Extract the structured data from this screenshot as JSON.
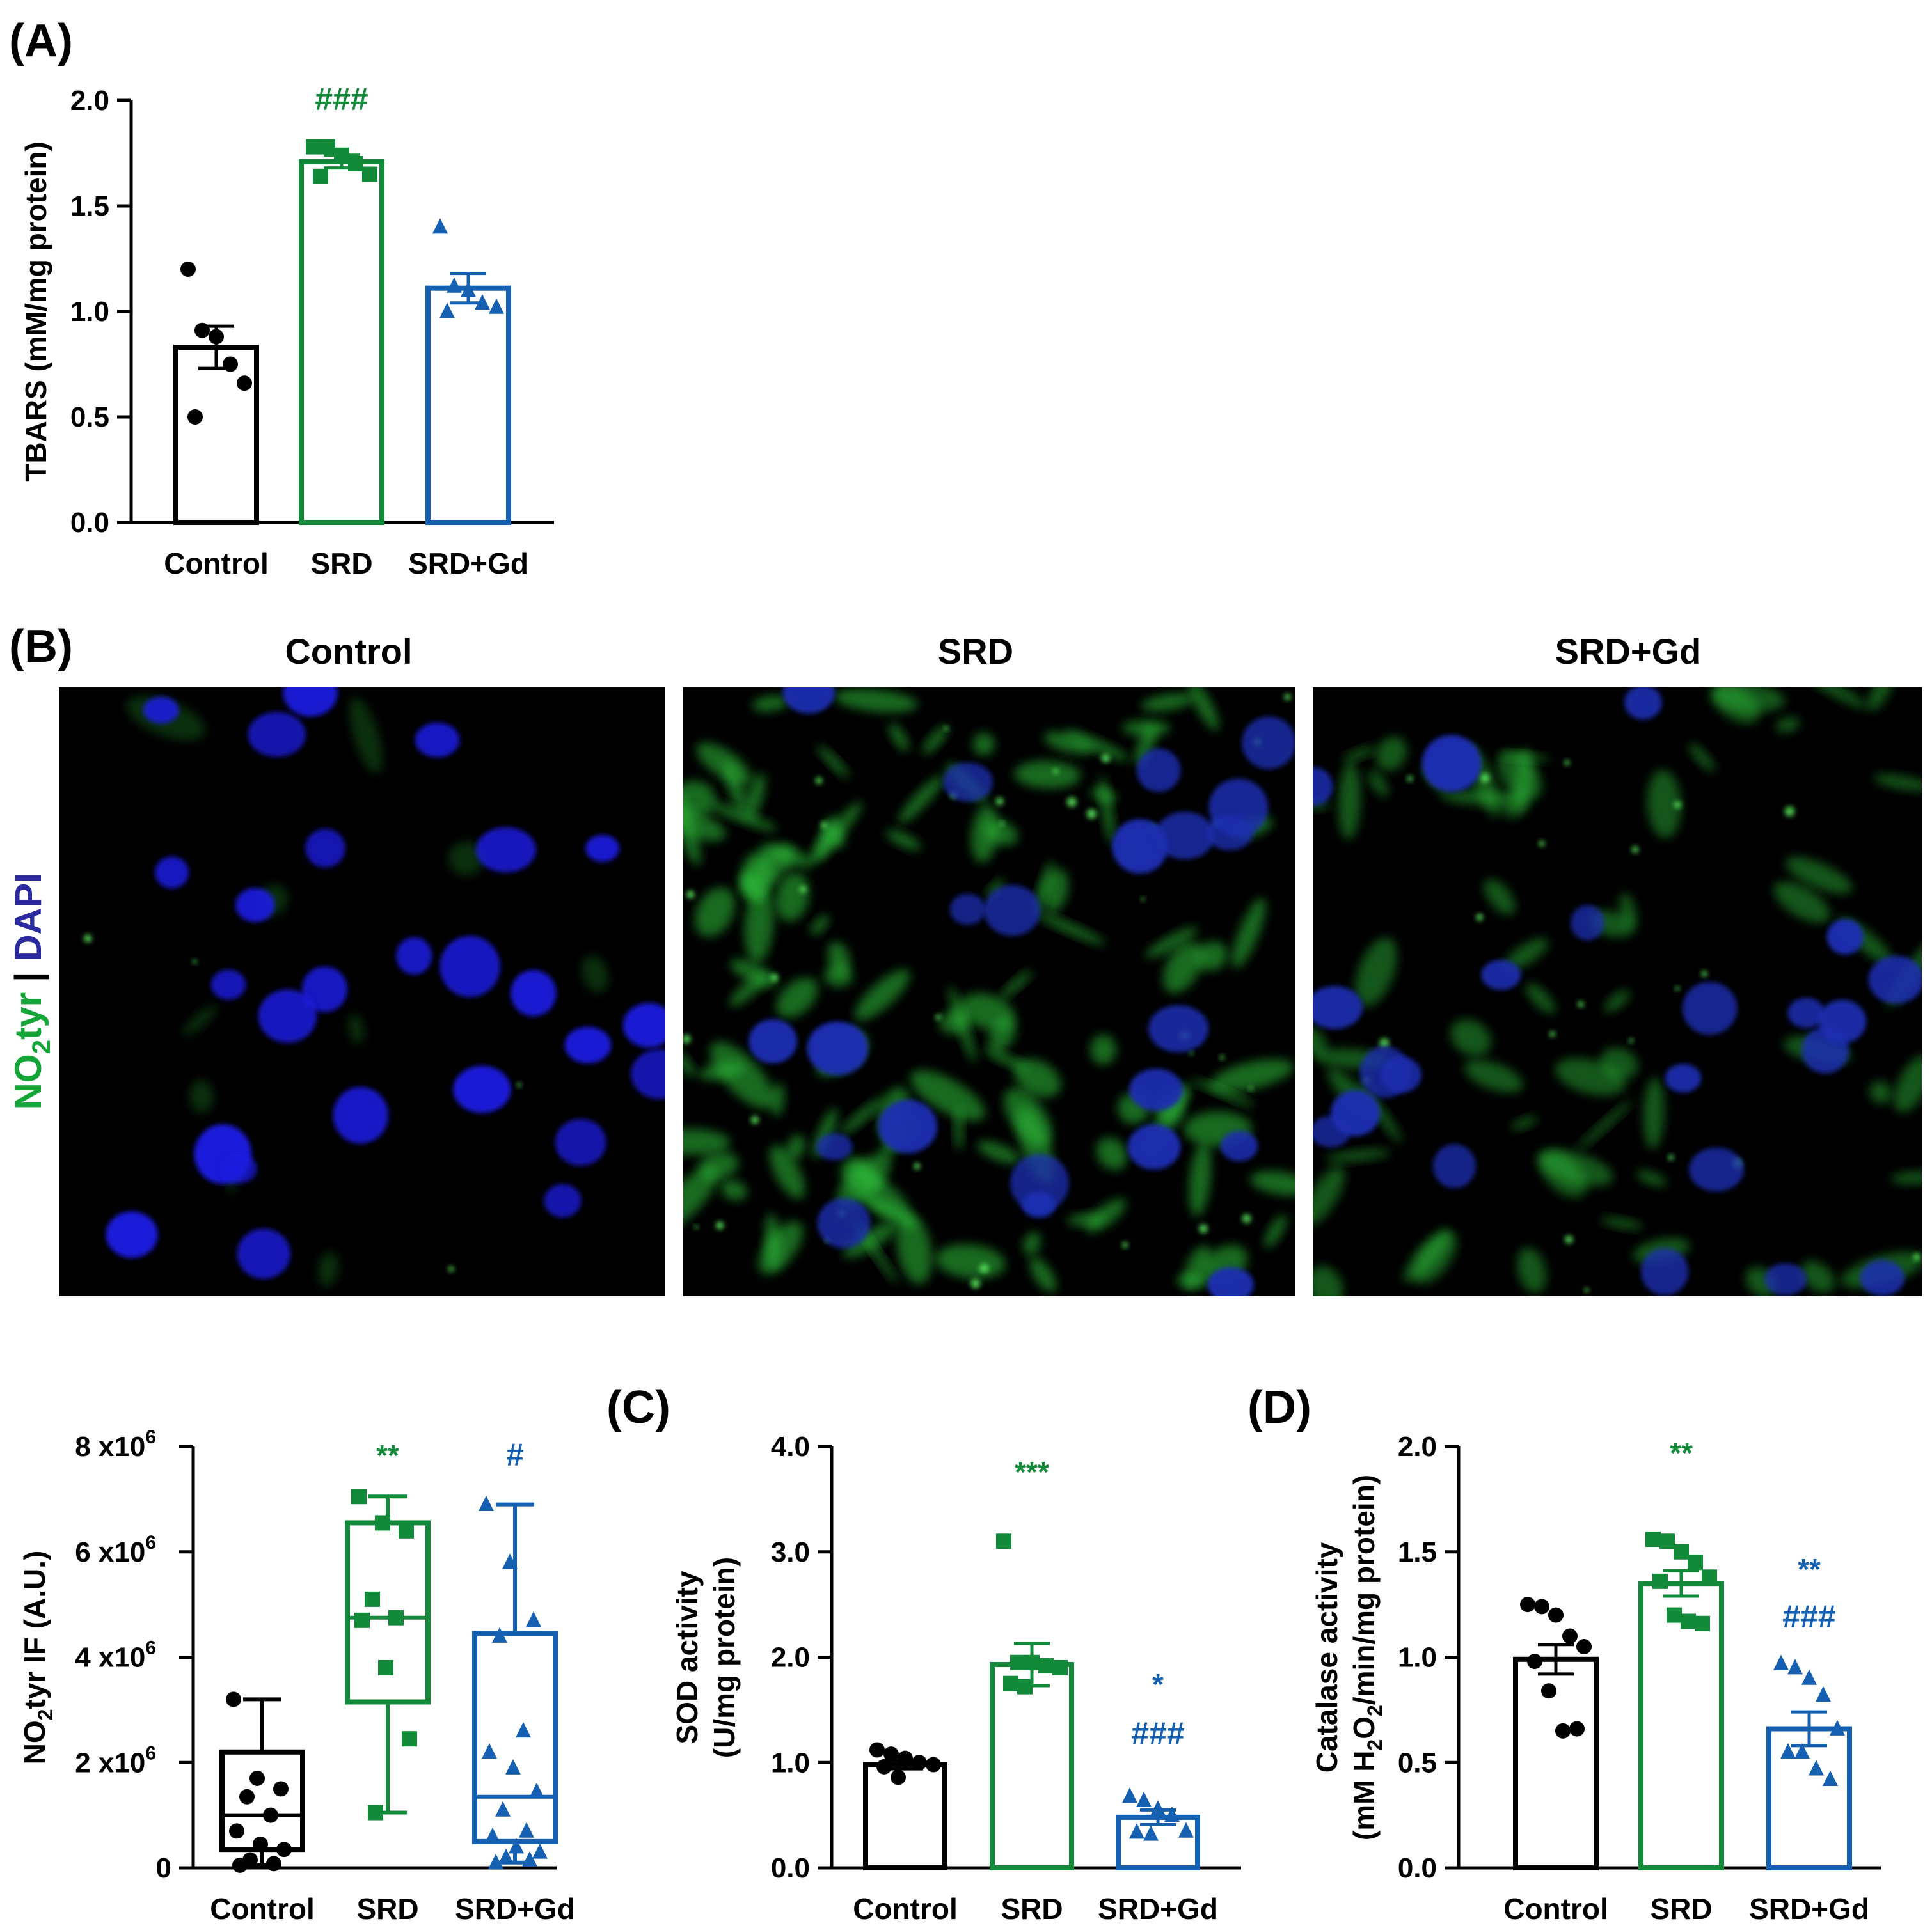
{
  "colors": {
    "control": "#000000",
    "srd": "#138a3a",
    "srdgd": "#1560b0",
    "ylabel_green": "#13a538",
    "ylabel_blue": "#2b2a9e"
  },
  "panel_labels": {
    "A": "(A)",
    "B": "(B)",
    "C": "(C)",
    "D": "(D)"
  },
  "groups": [
    "Control",
    "SRD",
    "SRD+Gd"
  ],
  "micrograph": {
    "titles": [
      "Control",
      "SRD",
      "SRD+Gd"
    ],
    "ylabel_green": "NO2tyr",
    "ylabel_sep": " | ",
    "ylabel_blue": "DAPI"
  },
  "chart_data": [
    {
      "id": "A",
      "type": "bar",
      "ylabel": "TBARS (mM/mg protein)",
      "ylim": [
        0,
        2.0
      ],
      "yticks": [
        0.0,
        0.5,
        1.0,
        1.5,
        2.0
      ],
      "ytick_labels": [
        "0.0",
        "0.5",
        "1.0",
        "1.5",
        "2.0"
      ],
      "categories": [
        "Control",
        "SRD",
        "SRD+Gd"
      ],
      "values": [
        0.83,
        1.71,
        1.11
      ],
      "sem": [
        0.1,
        0.03,
        0.07
      ],
      "points": [
        [
          1.2,
          0.91,
          0.88,
          0.75,
          0.66,
          0.5
        ],
        [
          1.78,
          1.78,
          1.74,
          1.7,
          1.65,
          1.64
        ],
        [
          1.4,
          1.12,
          1.1,
          1.04,
          1.02,
          1.0
        ]
      ],
      "annotations": [
        [
          "***"
        ],
        [
          "###",
          "*"
        ],
        []
      ],
      "annotation_order": [
        1,
        2
      ]
    },
    {
      "id": "B2",
      "type": "box",
      "ylabel_main": "NO2tyr IF",
      "ylabel_unit": "(A.U.)",
      "ylim": [
        0,
        8000000
      ],
      "yticks": [
        0,
        2000000,
        4000000,
        6000000,
        8000000
      ],
      "ytick_labels": [
        "0",
        "2 x10",
        "4 x10",
        "6 x10",
        "8 x10"
      ],
      "ytick_sup": [
        "",
        "6",
        "6",
        "6",
        "6"
      ],
      "categories": [
        "Control",
        "SRD",
        "SRD+Gd"
      ],
      "box": [
        {
          "min": 50000,
          "q1": 350000,
          "median": 1000000,
          "q3": 2200000,
          "max": 3200000
        },
        {
          "min": 1050000,
          "q1": 3150000,
          "median": 4750000,
          "q3": 6550000,
          "max": 7050000
        },
        {
          "min": 100000,
          "q1": 500000,
          "median": 1350000,
          "q3": 4450000,
          "max": 6900000
        }
      ],
      "points": [
        [
          3200000,
          1700000,
          1500000,
          1350000,
          1000000,
          700000,
          450000,
          350000,
          150000,
          80000,
          50000
        ],
        [
          7050000,
          6550000,
          6400000,
          5100000,
          4750000,
          4700000,
          3800000,
          2450000,
          1050000
        ],
        [
          6900000,
          5800000,
          4700000,
          4400000,
          2600000,
          2200000,
          1900000,
          1450000,
          1100000,
          700000,
          600000,
          400000,
          300000,
          200000,
          150000,
          100000
        ]
      ],
      "annotations": [
        [],
        [
          "**"
        ],
        [
          "#"
        ]
      ]
    },
    {
      "id": "C",
      "type": "bar",
      "ylabel": "SOD activity",
      "ylabel2": "(U/mg protein)",
      "ylim": [
        0,
        4.0
      ],
      "yticks": [
        0.0,
        1.0,
        2.0,
        3.0,
        4.0
      ],
      "ytick_labels": [
        "0.0",
        "1.0",
        "2.0",
        "3.0",
        "4.0"
      ],
      "categories": [
        "Control",
        "SRD",
        "SRD+Gd"
      ],
      "values": [
        0.98,
        1.93,
        0.48
      ],
      "sem": [
        0.04,
        0.2,
        0.07
      ],
      "points": [
        [
          1.12,
          1.08,
          1.04,
          1.0,
          0.98,
          0.96,
          0.86
        ],
        [
          3.1,
          1.95,
          1.95,
          1.92,
          1.9,
          1.75,
          1.72
        ],
        [
          0.68,
          0.64,
          0.56,
          0.5,
          0.35,
          0.34,
          0.32
        ]
      ],
      "annotations": [
        [],
        [
          "***"
        ],
        [
          "*",
          "###"
        ]
      ],
      "annotation_order": [
        1,
        2
      ]
    },
    {
      "id": "D",
      "type": "bar",
      "ylabel": "Catalase activity",
      "ylabel2_pre": "(mM H",
      "ylabel2_sub1": "2",
      "ylabel2_mid": "O",
      "ylabel2_sub2": "2",
      "ylabel2_post": "/min/mg protein)",
      "ylim": [
        0,
        2.0
      ],
      "yticks": [
        0.0,
        0.5,
        1.0,
        1.5,
        2.0
      ],
      "ytick_labels": [
        "0.0",
        "0.5",
        "1.0",
        "1.5",
        "2.0"
      ],
      "categories": [
        "Control",
        "SRD",
        "SRD+Gd"
      ],
      "values": [
        0.99,
        1.35,
        0.66
      ],
      "sem": [
        0.07,
        0.06,
        0.08
      ],
      "points": [
        [
          1.25,
          1.24,
          1.2,
          1.1,
          1.05,
          0.98,
          0.84,
          0.65,
          0.66
        ],
        [
          1.56,
          1.55,
          1.5,
          1.45,
          1.38,
          1.36,
          1.2,
          1.17,
          1.16
        ],
        [
          0.97,
          0.95,
          0.9,
          0.82,
          0.66,
          0.55,
          0.55,
          0.47,
          0.42
        ]
      ],
      "annotations": [
        [],
        [
          "**"
        ],
        [
          "**",
          "###"
        ]
      ]
    }
  ]
}
